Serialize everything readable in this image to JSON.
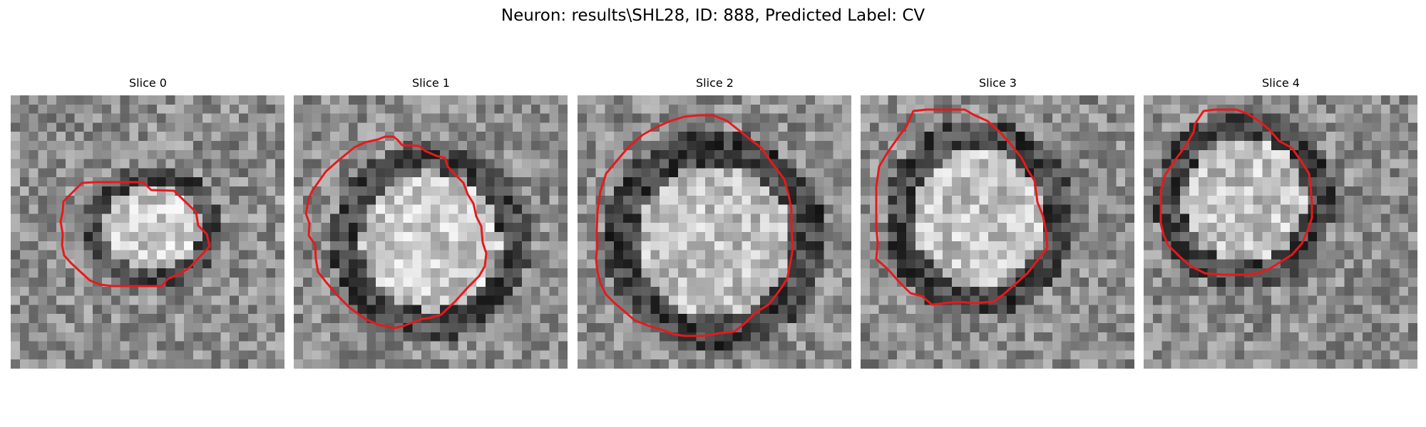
{
  "figure": {
    "title": "Neuron: results\\SHL28, ID: 888, Predicted Label: CV"
  },
  "slices": [
    {
      "title": "Slice 0"
    },
    {
      "title": "Slice 1"
    },
    {
      "title": "Slice 2"
    },
    {
      "title": "Slice 3"
    },
    {
      "title": "Slice 4"
    }
  ],
  "colors": {
    "contour": "#e8191b",
    "background": "#ffffff"
  }
}
